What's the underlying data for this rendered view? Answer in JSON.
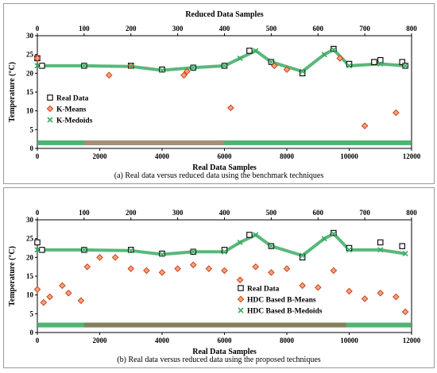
{
  "chart_data": [
    {
      "type": "scatter",
      "caption": "(a) Real data versus reduced data using the benchmark techniques",
      "top_axis_label": "Reduced Data Samples",
      "xlabel": "Real Data Samples",
      "ylabel": "Temperature (°C)",
      "xlim": [
        0,
        12000
      ],
      "x_ticks": [
        "0",
        "2000",
        "4000",
        "6000",
        "8000",
        "10000",
        "12000"
      ],
      "x2lim": [
        0,
        800
      ],
      "x2_ticks": [
        "0",
        "100",
        "200",
        "300",
        "400",
        "500",
        "600",
        "700",
        "800"
      ],
      "ylim": [
        0,
        30
      ],
      "y_ticks": [
        "0",
        "5",
        "10",
        "15",
        "20",
        "25",
        "30"
      ],
      "legend_position": "left",
      "series": [
        {
          "name": "Real Data",
          "marker": "open-square",
          "color": "#000000",
          "points": [
            [
              0,
              24
            ],
            [
              150,
              22
            ],
            [
              1500,
              22
            ],
            [
              3000,
              22
            ],
            [
              4000,
              21
            ],
            [
              5000,
              21.5
            ],
            [
              6000,
              22
            ],
            [
              6800,
              26
            ],
            [
              7500,
              23
            ],
            [
              8500,
              20
            ],
            [
              9500,
              26.5
            ],
            [
              10000,
              22.5
            ],
            [
              10800,
              23
            ],
            [
              11000,
              23.5
            ],
            [
              11700,
              23
            ],
            [
              11800,
              22
            ]
          ]
        },
        {
          "name": "K-Means",
          "marker": "diamond",
          "color": "#d0401c",
          "points": [
            [
              0,
              24
            ],
            [
              2300,
              19.5
            ],
            [
              4700,
              19.5
            ],
            [
              4800,
              20.5
            ],
            [
              6200,
              10.8
            ],
            [
              7600,
              22
            ],
            [
              10500,
              6
            ],
            [
              11500,
              9.5
            ],
            [
              3000,
              22
            ],
            [
              8000,
              21
            ],
            [
              9700,
              24
            ]
          ]
        },
        {
          "name": "K-Medoids",
          "marker": "x",
          "color": "#3cab63",
          "points": [
            [
              0,
              22
            ],
            [
              1500,
              22
            ],
            [
              3000,
              21.8
            ],
            [
              4000,
              20.8
            ],
            [
              5000,
              21.5
            ],
            [
              6000,
              22
            ],
            [
              6500,
              24
            ],
            [
              7000,
              26
            ],
            [
              7500,
              23
            ],
            [
              8500,
              20.5
            ],
            [
              9200,
              25
            ],
            [
              9500,
              26.3
            ],
            [
              10000,
              22
            ],
            [
              11000,
              22.5
            ],
            [
              11800,
              22
            ]
          ]
        }
      ]
    },
    {
      "type": "scatter",
      "caption": "(b) Real data versus reduced data using the proposed techniques",
      "top_axis_label": "",
      "xlabel": "Real Data Samples",
      "ylabel": "Temperature (°C)",
      "xlim": [
        0,
        12000
      ],
      "x_ticks": [
        "0",
        "2000",
        "4000",
        "6000",
        "8000",
        "10000",
        "12000"
      ],
      "x2lim": [
        0,
        800
      ],
      "x2_ticks": [
        "0",
        "100",
        "200",
        "300",
        "400",
        "500",
        "600",
        "700",
        "800"
      ],
      "ylim": [
        0,
        30
      ],
      "y_ticks": [
        "0",
        "5",
        "10",
        "15",
        "20",
        "25",
        "30"
      ],
      "legend_position": "bottom-center",
      "series": [
        {
          "name": "Real Data",
          "marker": "open-square",
          "color": "#000000",
          "points": [
            [
              0,
              24
            ],
            [
              150,
              22
            ],
            [
              1500,
              22
            ],
            [
              3000,
              22
            ],
            [
              4000,
              21
            ],
            [
              5000,
              21.5
            ],
            [
              6000,
              22
            ],
            [
              6800,
              26
            ],
            [
              7500,
              23
            ],
            [
              8500,
              20
            ],
            [
              9500,
              26.5
            ],
            [
              10000,
              22.5
            ],
            [
              11000,
              24
            ],
            [
              11700,
              23
            ]
          ]
        },
        {
          "name": "HDC Based B-Means",
          "marker": "diamond",
          "color": "#d0401c",
          "points": [
            [
              0,
              11.5
            ],
            [
              200,
              8
            ],
            [
              400,
              9.5
            ],
            [
              800,
              12.5
            ],
            [
              1000,
              10.5
            ],
            [
              1400,
              8.5
            ],
            [
              1600,
              17.5
            ],
            [
              2000,
              20
            ],
            [
              2500,
              20
            ],
            [
              3000,
              17
            ],
            [
              3500,
              16.5
            ],
            [
              4000,
              16
            ],
            [
              4500,
              17
            ],
            [
              5000,
              18
            ],
            [
              5500,
              17
            ],
            [
              6000,
              16.5
            ],
            [
              6500,
              14
            ],
            [
              7000,
              17.5
            ],
            [
              7500,
              16
            ],
            [
              8000,
              17
            ],
            [
              8500,
              12.5
            ],
            [
              9000,
              12
            ],
            [
              9500,
              16.5
            ],
            [
              10000,
              11
            ],
            [
              10500,
              9
            ],
            [
              11000,
              10.5
            ],
            [
              11500,
              9.5
            ],
            [
              11800,
              5.5
            ]
          ]
        },
        {
          "name": "HDC Based B-Medoids",
          "marker": "x",
          "color": "#3cab63",
          "points": [
            [
              0,
              22
            ],
            [
              1500,
              22
            ],
            [
              3000,
              21.8
            ],
            [
              4000,
              20.8
            ],
            [
              5000,
              21.5
            ],
            [
              6000,
              21.5
            ],
            [
              6500,
              24
            ],
            [
              7000,
              26
            ],
            [
              7500,
              23
            ],
            [
              8500,
              20.5
            ],
            [
              9200,
              25
            ],
            [
              9500,
              26.3
            ],
            [
              10000,
              22
            ],
            [
              11000,
              22
            ],
            [
              11800,
              21
            ]
          ]
        }
      ]
    }
  ]
}
